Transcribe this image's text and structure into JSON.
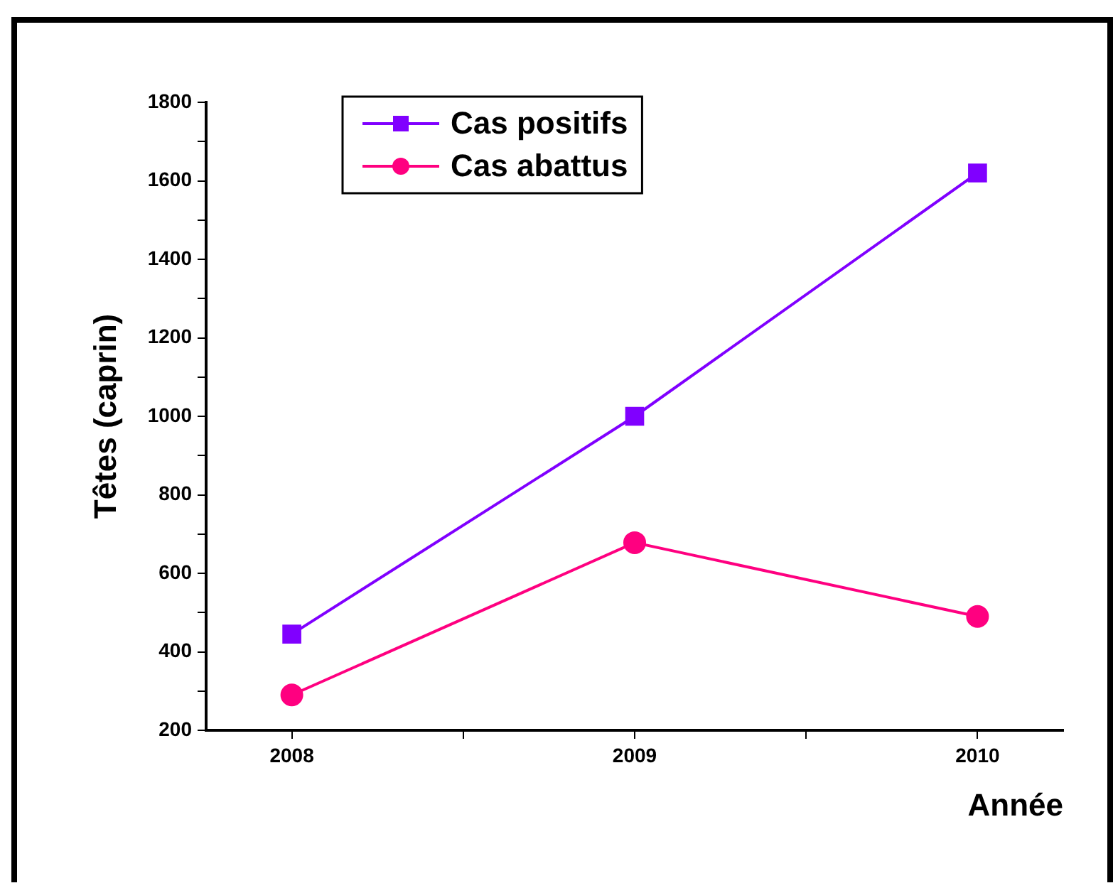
{
  "chart_data": {
    "type": "line",
    "ylabel": "Têtes (caprin)",
    "xlabel": "Année",
    "x": [
      2008,
      2009,
      2010
    ],
    "xlim": [
      2007.75,
      2010.25
    ],
    "xticks": [
      2008,
      {
        "value": 2008.5,
        "label": null
      },
      2009,
      {
        "value": 2009.5,
        "label": null
      },
      2010
    ],
    "ylim": [
      200,
      1800
    ],
    "yticks": [
      200,
      {
        "value": 300,
        "label": null
      },
      400,
      {
        "value": 500,
        "label": null
      },
      600,
      {
        "value": 700,
        "label": null
      },
      800,
      {
        "value": 900,
        "label": null
      },
      1000,
      {
        "value": 1100,
        "label": null
      },
      1200,
      {
        "value": 1300,
        "label": null
      },
      1400,
      {
        "value": 1500,
        "label": null
      },
      1600,
      {
        "value": 1700,
        "label": null
      },
      1800
    ],
    "series": [
      {
        "name": "Cas positifs",
        "color": "#8000ff",
        "marker": "square",
        "values": [
          445,
          1000,
          1620
        ]
      },
      {
        "name": "Cas abattus",
        "color": "#ff0080",
        "marker": "circle",
        "values": [
          290,
          678,
          490
        ]
      }
    ],
    "grid": false,
    "legend": "top left",
    "line_style": "solid"
  }
}
